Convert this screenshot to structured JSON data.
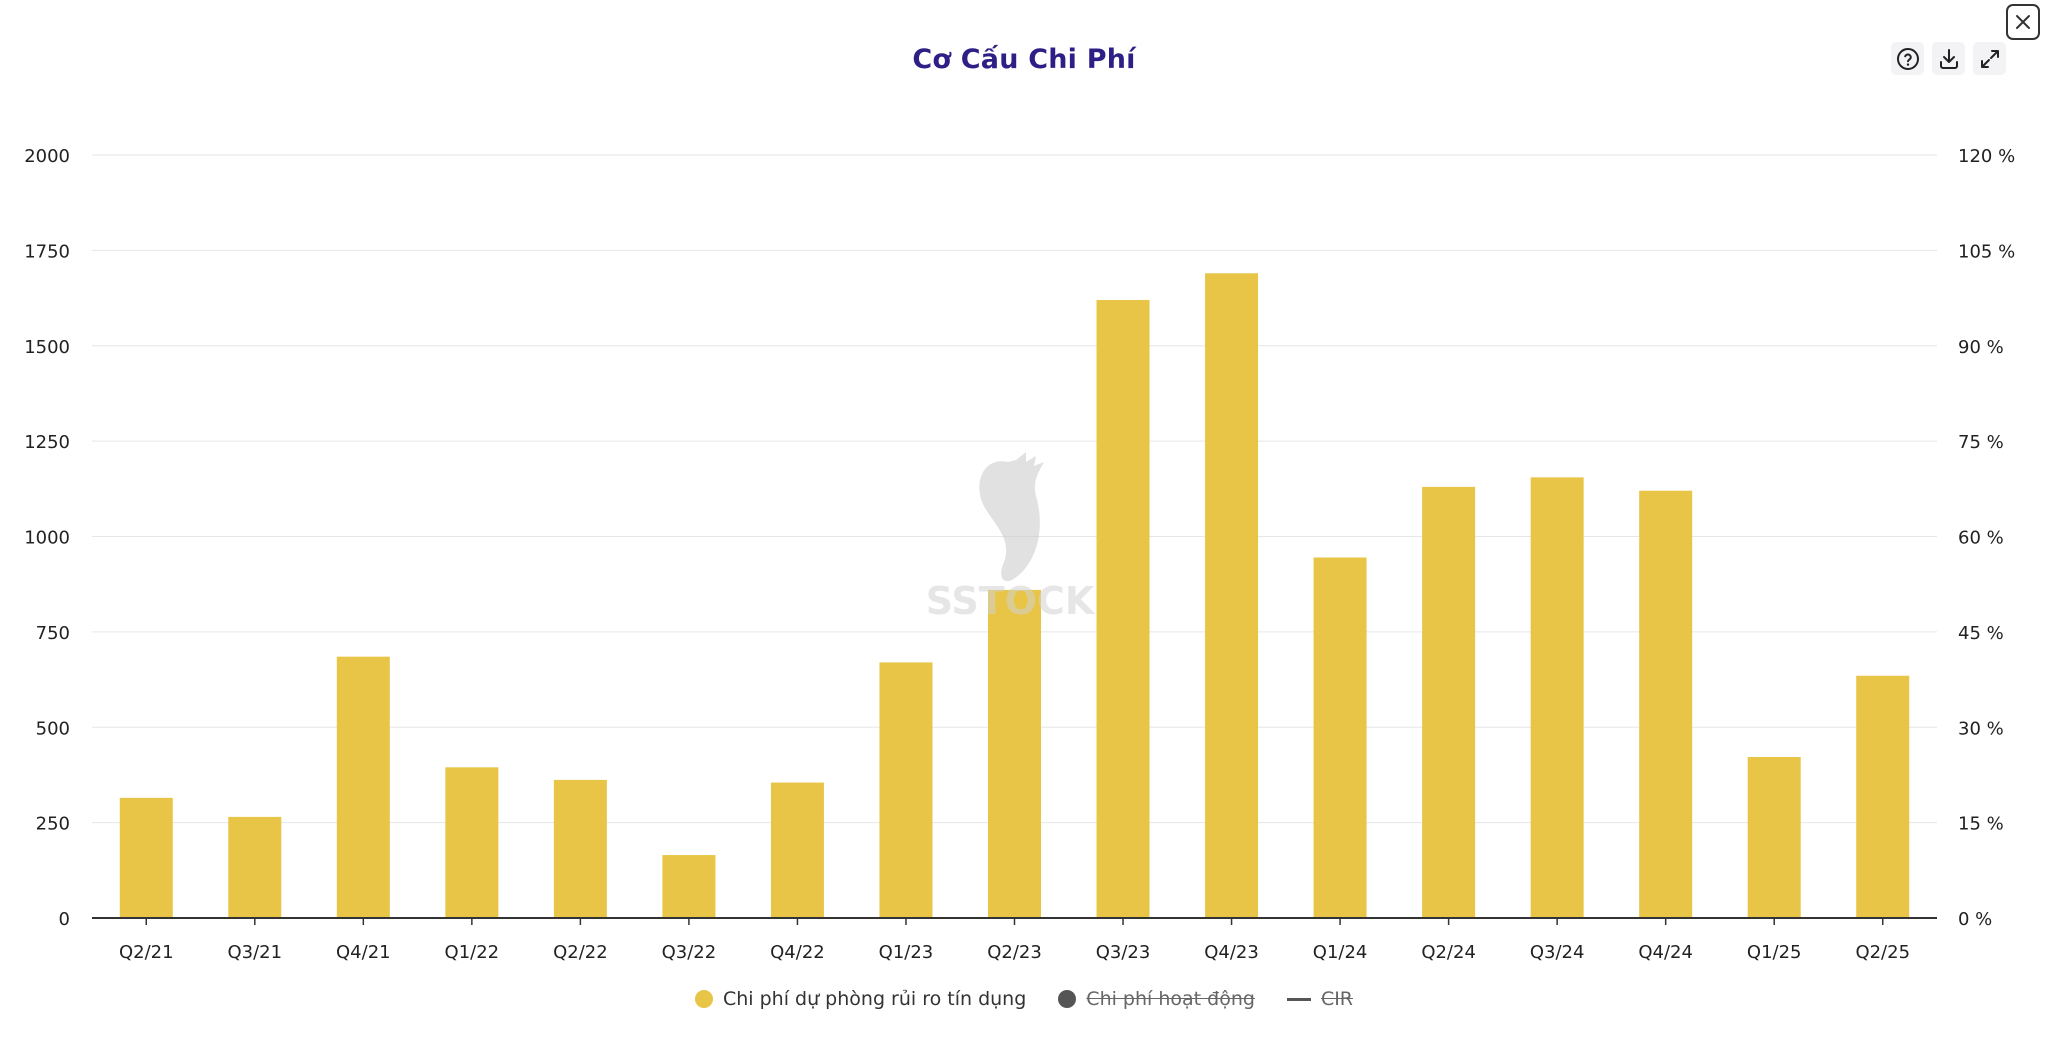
{
  "title": "Cơ Cấu Chi Phí",
  "toolbar": {
    "help_icon": "help-circle-icon",
    "download_icon": "download-icon",
    "expand_icon": "expand-icon",
    "close_icon": "close-icon"
  },
  "watermark": "SSTOCK",
  "colors": {
    "bar": "#e8c547",
    "title": "#2e1f86",
    "grid": "#e6e6e6",
    "axis": "#333333",
    "legend_hidden": "#555555"
  },
  "legend": [
    {
      "label": "Chi phí dự phòng rủi ro tín dụng",
      "marker": "dot",
      "color": "#e8c547",
      "hidden": false
    },
    {
      "label": "Chi phí hoạt động",
      "marker": "dot",
      "color": "#555555",
      "hidden": true
    },
    {
      "label": "CIR",
      "marker": "line",
      "color": "#555555",
      "hidden": true
    }
  ],
  "chart_data": {
    "type": "bar",
    "title": "Cơ Cấu Chi Phí",
    "categories": [
      "Q2/21",
      "Q3/21",
      "Q4/21",
      "Q1/22",
      "Q2/22",
      "Q3/22",
      "Q4/22",
      "Q1/23",
      "Q2/23",
      "Q3/23",
      "Q4/23",
      "Q1/24",
      "Q2/24",
      "Q3/24",
      "Q4/24",
      "Q1/25",
      "Q2/25"
    ],
    "series": [
      {
        "name": "Chi phí dự phòng rủi ro tín dụng",
        "values": [
          315,
          265,
          685,
          395,
          362,
          165,
          355,
          670,
          860,
          1620,
          1690,
          945,
          1130,
          1155,
          1120,
          422,
          635
        ]
      }
    ],
    "ylim": [
      0,
      2000
    ],
    "yticks": [
      0,
      250,
      500,
      750,
      1000,
      1250,
      1500,
      1750,
      2000
    ],
    "y2ticks": [
      "0 %",
      "15 %",
      "30 %",
      "45 %",
      "60 %",
      "75 %",
      "90 %",
      "105 %",
      "120 %"
    ],
    "grid": true,
    "legend_position": "bottom-center"
  }
}
